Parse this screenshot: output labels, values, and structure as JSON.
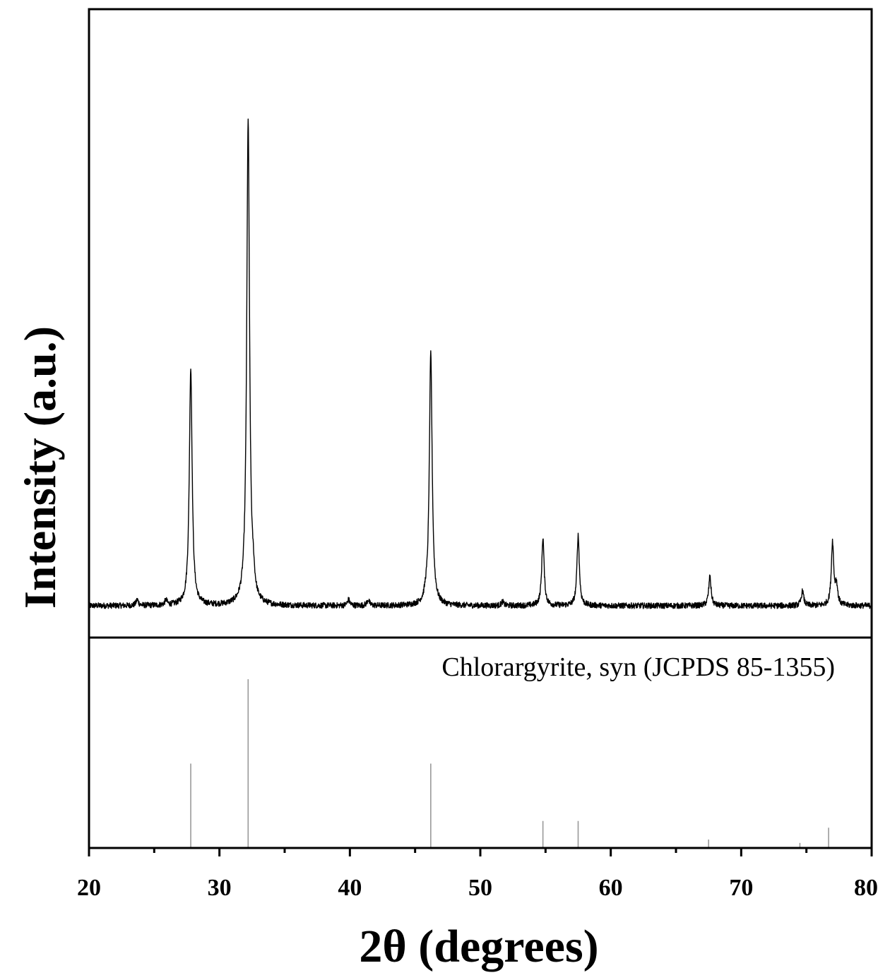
{
  "chart_data": [
    {
      "type": "line",
      "panel": "measured XRD pattern",
      "xlabel": "2θ (degrees)",
      "ylabel": "Intensity (a.u.)",
      "xlim": [
        20,
        80
      ],
      "x_ticks": [
        "20",
        "30",
        "40",
        "50",
        "60",
        "70",
        "80"
      ],
      "y_ticks_shown": false,
      "baseline": 0.055,
      "series": [
        {
          "peaks": [
            {
              "x": 23.7,
              "y": 0.012
            },
            {
              "x": 25.9,
              "y": 0.01
            },
            {
              "x": 27.8,
              "y": 0.49
            },
            {
              "x": 32.2,
              "y": 1.0
            },
            {
              "x": 32.6,
              "y": 0.03
            },
            {
              "x": 39.9,
              "y": 0.012
            },
            {
              "x": 41.4,
              "y": 0.012
            },
            {
              "x": 46.2,
              "y": 0.52
            },
            {
              "x": 45.8,
              "y": 0.01
            },
            {
              "x": 51.7,
              "y": 0.008
            },
            {
              "x": 54.8,
              "y": 0.14
            },
            {
              "x": 57.5,
              "y": 0.145
            },
            {
              "x": 67.6,
              "y": 0.06
            },
            {
              "x": 74.7,
              "y": 0.03
            },
            {
              "x": 77.0,
              "y": 0.13
            },
            {
              "x": 77.3,
              "y": 0.04
            }
          ]
        }
      ]
    },
    {
      "type": "bar",
      "panel": "reference stick pattern",
      "annotation": "Chlorargyrite, syn (JCPDS 85-1355)",
      "xlim": [
        20,
        80
      ],
      "x": [
        27.8,
        32.2,
        46.2,
        54.8,
        57.5,
        67.5,
        74.5,
        76.7
      ],
      "values": [
        100,
        200,
        100,
        32,
        32,
        10,
        6,
        24
      ]
    }
  ],
  "colors": {
    "pattern": "#000000",
    "sticks": "#999999",
    "axes": "#000000"
  }
}
